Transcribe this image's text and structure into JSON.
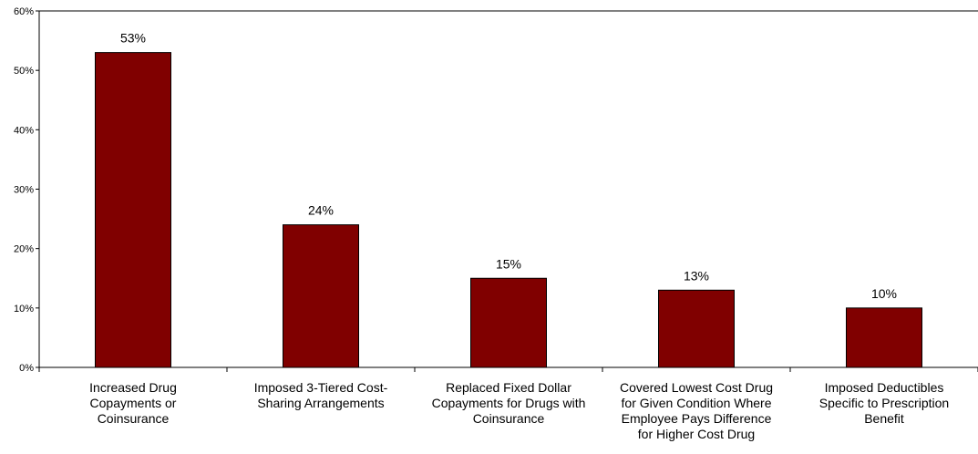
{
  "chart_data": {
    "type": "bar",
    "categories": [
      [
        "Increased Drug",
        "Copayments or",
        "Coinsurance"
      ],
      [
        "Imposed 3-Tiered Cost-",
        "Sharing Arrangements"
      ],
      [
        "Replaced Fixed Dollar",
        "Copayments for Drugs with",
        "Coinsurance"
      ],
      [
        "Covered Lowest Cost Drug",
        "for Given Condition Where",
        "Employee Pays Difference",
        "for Higher Cost Drug"
      ],
      [
        "Imposed Deductibles",
        "Specific to Prescription",
        "Benefit"
      ]
    ],
    "values": [
      53,
      24,
      15,
      13,
      10
    ],
    "data_labels": [
      "53%",
      "24%",
      "15%",
      "13%",
      "10%"
    ],
    "ylim": [
      0,
      60
    ],
    "yticks": [
      0,
      10,
      20,
      30,
      40,
      50,
      60
    ],
    "ytick_labels": [
      "0%",
      "10%",
      "20%",
      "30%",
      "40%",
      "50%",
      "60%"
    ],
    "grid": false,
    "legend": "none",
    "colors": {
      "bar_fill": "#800000",
      "bar_stroke": "#000000",
      "axis": "#000000"
    }
  }
}
